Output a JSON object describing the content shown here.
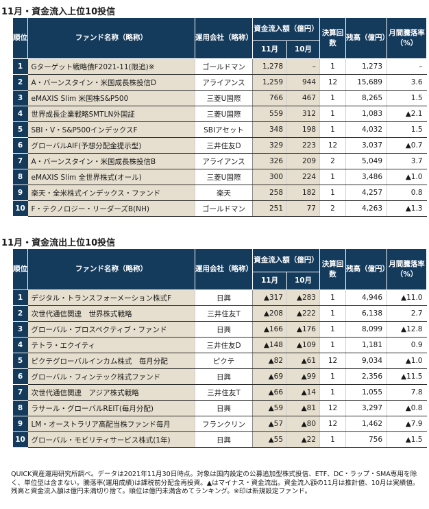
{
  "inflow": {
    "title": "11月・資金流入上位10投信",
    "headers": {
      "rank": "順位",
      "fund": "ファンド名称（略称）",
      "company": "運用会社（略称）",
      "flow": "資金流入額（億円）",
      "nov": "11月",
      "oct": "10月",
      "settle": "決算回数",
      "balance": "残高（億円）",
      "drop": "月間騰落率（%）"
    },
    "rows": [
      {
        "rank": "1",
        "fund": "Gターゲット戦略債F2021-11(限追)※",
        "company": "ゴールドマン",
        "nov": "1,278",
        "oct": "–",
        "settle": "1",
        "balance": "1,273",
        "change": "–"
      },
      {
        "rank": "2",
        "fund": "A・バーンスタイン・米国成長株投信D",
        "company": "アライアンス",
        "nov": "1,259",
        "oct": "944",
        "settle": "12",
        "balance": "15,689",
        "change": "3.6"
      },
      {
        "rank": "3",
        "fund": "eMAXIS Slim 米国株S&P500",
        "company": "三菱U国際",
        "nov": "766",
        "oct": "467",
        "settle": "1",
        "balance": "8,265",
        "change": "1.5"
      },
      {
        "rank": "4",
        "fund": "世界成長企業戦略SMTLN外国証",
        "company": "三菱U国際",
        "nov": "559",
        "oct": "312",
        "settle": "1",
        "balance": "1,083",
        "change": "▲2.1"
      },
      {
        "rank": "5",
        "fund": "SBI・V・S&P500インデックスF",
        "company": "SBIアセット",
        "nov": "348",
        "oct": "198",
        "settle": "1",
        "balance": "4,032",
        "change": "1.5"
      },
      {
        "rank": "6",
        "fund": "グローバルAIF(予想分配金提示型)",
        "company": "三井住友D",
        "nov": "329",
        "oct": "223",
        "settle": "12",
        "balance": "3,037",
        "change": "▲0.7"
      },
      {
        "rank": "7",
        "fund": "A・バーンスタイン・米国成長株投信B",
        "company": "アライアンス",
        "nov": "326",
        "oct": "209",
        "settle": "2",
        "balance": "5,049",
        "change": "3.7"
      },
      {
        "rank": "8",
        "fund": "eMAXIS Slim 全世界株式(オール)",
        "company": "三菱U国際",
        "nov": "300",
        "oct": "224",
        "settle": "1",
        "balance": "3,486",
        "change": "▲1.0"
      },
      {
        "rank": "9",
        "fund": "楽天・全米株式インデックス・ファンド",
        "company": "楽天",
        "nov": "258",
        "oct": "182",
        "settle": "1",
        "balance": "4,257",
        "change": "0.8"
      },
      {
        "rank": "10",
        "fund": "F・テクノロジー・リーダーズB(NH)",
        "company": "ゴールドマン",
        "nov": "251",
        "oct": "77",
        "settle": "2",
        "balance": "4,263",
        "change": "▲1.3"
      }
    ]
  },
  "outflow": {
    "title": "11月・資金流出上位10投信",
    "headers": {
      "rank": "順位",
      "fund": "ファンド名称（略称）",
      "company": "運用会社（略称）",
      "flow": "資金流入額（億円）",
      "nov": "11月",
      "oct": "10月",
      "settle": "決算回数",
      "balance": "残高（億円）",
      "drop": "月間騰落率（%）"
    },
    "rows": [
      {
        "rank": "1",
        "fund": "デジタル・トランスフォーメーション株式F",
        "company": "日興",
        "nov": "▲317",
        "oct": "▲283",
        "settle": "1",
        "balance": "4,946",
        "change": "▲11.0"
      },
      {
        "rank": "2",
        "fund": "次世代通信関連　世界株式戦略",
        "company": "三井住友T",
        "nov": "▲208",
        "oct": "▲222",
        "settle": "1",
        "balance": "6,138",
        "change": "2.7"
      },
      {
        "rank": "3",
        "fund": "グローバル・プロスペクティブ・ファンド",
        "company": "日興",
        "nov": "▲166",
        "oct": "▲176",
        "settle": "1",
        "balance": "8,099",
        "change": "▲12.8"
      },
      {
        "rank": "4",
        "fund": "テトラ・エクイティ",
        "company": "三井住友D",
        "nov": "▲148",
        "oct": "▲109",
        "settle": "1",
        "balance": "1,181",
        "change": "0.9"
      },
      {
        "rank": "5",
        "fund": "ピクテグローバルインカム株式　毎月分配",
        "company": "ピクテ",
        "nov": "▲82",
        "oct": "▲61",
        "settle": "12",
        "balance": "9,034",
        "change": "▲1.0"
      },
      {
        "rank": "6",
        "fund": "グローバル・フィンテック株式ファンド",
        "company": "日興",
        "nov": "▲69",
        "oct": "▲99",
        "settle": "1",
        "balance": "2,356",
        "change": "▲11.5"
      },
      {
        "rank": "7",
        "fund": "次世代通信関連　アジア株式戦略",
        "company": "三井住友T",
        "nov": "▲66",
        "oct": "▲14",
        "settle": "1",
        "balance": "1,055",
        "change": "7.8"
      },
      {
        "rank": "8",
        "fund": "ラサール・グローバルREIT(毎月分配)",
        "company": "日興",
        "nov": "▲59",
        "oct": "▲81",
        "settle": "12",
        "balance": "3,297",
        "change": "▲0.8"
      },
      {
        "rank": "9",
        "fund": "LM・オーストラリア高配当株ファンド毎月",
        "company": "フランクリン",
        "nov": "▲57",
        "oct": "▲80",
        "settle": "12",
        "balance": "1,462",
        "change": "▲7.9"
      },
      {
        "rank": "10",
        "fund": "グローバル・モビリティサービス株式(1年)",
        "company": "日興",
        "nov": "▲55",
        "oct": "▲22",
        "settle": "1",
        "balance": "756",
        "change": "▲1.5"
      }
    ]
  },
  "footnote": "QUICK資産運用研究所調べ。データは2021年11月30日時点。対象は国内設定の公募追加型株式投信、ETF、DC・ラップ・SMA専用を除く、単位型は含まない。騰落率(運用成績)は課税前分配金再投資。▲はマイナス・資金流出。資金流入額の11月は推計値、10月は実績値。残高と資金流入額は億円未満切り捨て。順位は億円未満含めてランキング。※印は新規設定ファンド。"
}
